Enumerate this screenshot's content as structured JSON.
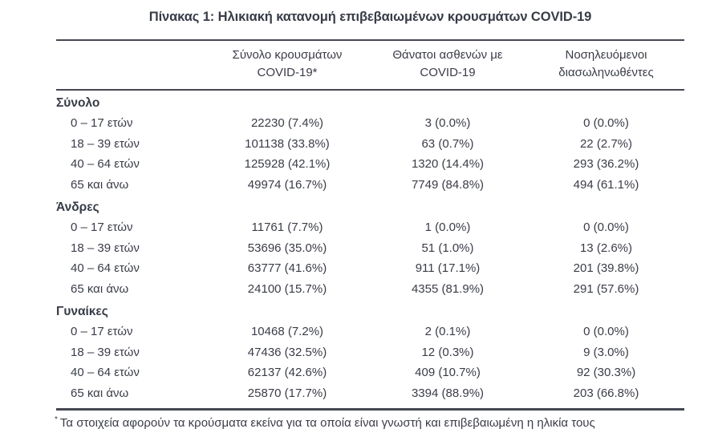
{
  "title": "Πίνακας 1: Ηλικιακή κατανομή επιβεβαιωμένων κρουσμάτων COVID-19",
  "colors": {
    "text": "#3a3d47",
    "rule": "#454852",
    "background": "#ffffff"
  },
  "table": {
    "columns": [
      {
        "line1": "Σύνολο κρουσμάτων",
        "line2": "COVID-19*"
      },
      {
        "line1": "Θάνατοι ασθενών με",
        "line2": "COVID-19"
      },
      {
        "line1": "Νοσηλευόμενοι",
        "line2": "διασωληνωθέντες"
      }
    ],
    "sections": [
      {
        "label": "Σύνολο",
        "rows": [
          {
            "age": "0 – 17 ετών",
            "cases": "22230 (7.4%)",
            "deaths": "3 (0.0%)",
            "intubated": "0 (0.0%)"
          },
          {
            "age": "18 – 39 ετών",
            "cases": "101138 (33.8%)",
            "deaths": "63 (0.7%)",
            "intubated": "22 (2.7%)"
          },
          {
            "age": "40 – 64 ετών",
            "cases": "125928 (42.1%)",
            "deaths": "1320 (14.4%)",
            "intubated": "293 (36.2%)"
          },
          {
            "age": "65 και άνω",
            "cases": "49974 (16.7%)",
            "deaths": "7749 (84.8%)",
            "intubated": "494 (61.1%)"
          }
        ]
      },
      {
        "label": "Άνδρες",
        "rows": [
          {
            "age": "0 – 17 ετών",
            "cases": "11761 (7.7%)",
            "deaths": "1 (0.0%)",
            "intubated": "0 (0.0%)"
          },
          {
            "age": "18 – 39 ετών",
            "cases": "53696 (35.0%)",
            "deaths": "51 (1.0%)",
            "intubated": "13 (2.6%)"
          },
          {
            "age": "40 – 64 ετών",
            "cases": "63777 (41.6%)",
            "deaths": "911 (17.1%)",
            "intubated": "201 (39.8%)"
          },
          {
            "age": "65 και άνω",
            "cases": "24100 (15.7%)",
            "deaths": "4355 (81.9%)",
            "intubated": "291 (57.6%)"
          }
        ]
      },
      {
        "label": "Γυναίκες",
        "rows": [
          {
            "age": "0 – 17 ετών",
            "cases": "10468 (7.2%)",
            "deaths": "2 (0.1%)",
            "intubated": "0 (0.0%)"
          },
          {
            "age": "18 – 39 ετών",
            "cases": "47436 (32.5%)",
            "deaths": "12 (0.3%)",
            "intubated": "9 (3.0%)"
          },
          {
            "age": "40 – 64 ετών",
            "cases": "62137 (42.6%)",
            "deaths": "409 (10.7%)",
            "intubated": "92 (30.3%)"
          },
          {
            "age": "65 και άνω",
            "cases": "25870 (17.7%)",
            "deaths": "3394 (88.9%)",
            "intubated": "203 (66.8%)"
          }
        ]
      }
    ]
  },
  "footnote": {
    "marker": "*",
    "text": "Τα στοιχεία αφορούν τα κρούσματα εκείνα για τα οποία είναι γνωστή και επιβεβαιωμένη η ηλικία τους"
  }
}
